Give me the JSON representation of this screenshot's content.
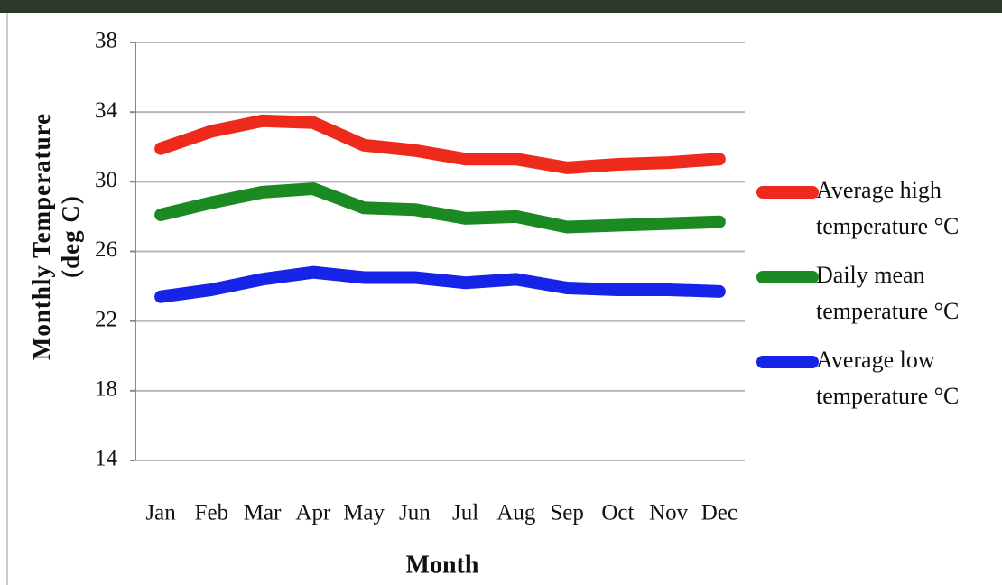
{
  "chart_data": {
    "type": "line",
    "x_label": "Month",
    "y_label": "Monthly Temperature (deg C)",
    "categories": [
      "Jan",
      "Feb",
      "Mar",
      "Apr",
      "May",
      "Jun",
      "Jul",
      "Aug",
      "Sep",
      "Oct",
      "Nov",
      "Dec"
    ],
    "series": [
      {
        "name": "Average high temperature °C",
        "color": "#ee2a1c",
        "values": [
          31.9,
          32.9,
          33.5,
          33.4,
          32.1,
          31.8,
          31.3,
          31.3,
          30.8,
          31.0,
          31.1,
          31.3
        ]
      },
      {
        "name": "Daily mean temperature °C",
        "color": "#1b8a22",
        "values": [
          28.1,
          28.8,
          29.4,
          29.6,
          28.5,
          28.4,
          27.9,
          28.0,
          27.4,
          27.5,
          27.6,
          27.7
        ]
      },
      {
        "name": "Average low temperature °C",
        "color": "#1524e6",
        "values": [
          23.4,
          23.8,
          24.4,
          24.8,
          24.5,
          24.5,
          24.2,
          24.4,
          23.9,
          23.8,
          23.8,
          23.7
        ]
      }
    ],
    "ylim": [
      14,
      38
    ],
    "yticks": [
      14,
      18,
      22,
      26,
      30,
      34,
      38
    ],
    "grid": true
  }
}
